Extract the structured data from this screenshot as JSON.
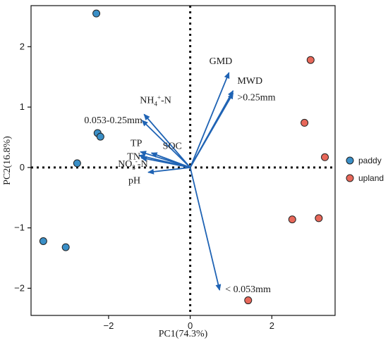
{
  "chart_data": {
    "type": "scatter",
    "subtype": "pca-biplot",
    "xlabel": "PC1(74.3%)",
    "ylabel": "PC2(16.8%)",
    "xlim": [
      -3.9,
      3.55
    ],
    "ylim": [
      -2.45,
      2.68
    ],
    "xticks": [
      -2,
      0,
      2
    ],
    "yticks": [
      -2,
      -1,
      0,
      1,
      2
    ],
    "grid": false,
    "legend_position": "right",
    "series": [
      {
        "name": "paddy",
        "color": "#3a8fc7",
        "points": [
          {
            "x": -2.3,
            "y": 2.55
          },
          {
            "x": -2.27,
            "y": 0.57
          },
          {
            "x": -2.2,
            "y": 0.51
          },
          {
            "x": -2.77,
            "y": 0.07
          },
          {
            "x": -3.6,
            "y": -1.22
          },
          {
            "x": -3.05,
            "y": -1.32
          }
        ]
      },
      {
        "name": "upland",
        "color": "#e8685a",
        "points": [
          {
            "x": 2.95,
            "y": 1.78
          },
          {
            "x": 2.8,
            "y": 0.74
          },
          {
            "x": 3.3,
            "y": 0.17
          },
          {
            "x": 2.5,
            "y": -0.86
          },
          {
            "x": 3.15,
            "y": -0.84
          },
          {
            "x": 1.42,
            "y": -2.2
          }
        ]
      }
    ],
    "vectors": [
      {
        "label": "GMD",
        "x": 0.95,
        "y": 1.57,
        "label_sup": "",
        "label_sub": ""
      },
      {
        "label": "MWD",
        "x": 1.05,
        "y": 1.27,
        "label_sup": "",
        "label_sub": ""
      },
      {
        "label": ">0.25mm",
        "x": 1.05,
        "y": 1.23,
        "label_sup": "",
        "label_sub": ""
      },
      {
        "label": "NH4+-N",
        "label_main": "NH",
        "label_sub": "4",
        "label_sup": "+",
        "label_tail": "-N",
        "x": -1.13,
        "y": 0.88
      },
      {
        "label": "0.053-0.25mm",
        "x": -1.18,
        "y": 0.78,
        "label_sup": "",
        "label_sub": ""
      },
      {
        "label": "SOC",
        "x": -0.95,
        "y": 0.24,
        "label_sup": "",
        "label_sub": ""
      },
      {
        "label": "TP",
        "x": -1.22,
        "y": 0.26,
        "label_sup": "",
        "label_sub": ""
      },
      {
        "label": "TN",
        "x": -1.25,
        "y": 0.2,
        "label_sup": "",
        "label_sub": ""
      },
      {
        "label": "NO3--N",
        "label_main": "NO",
        "label_sub": "3",
        "label_sup": "-",
        "label_tail": "-N",
        "x": -1.2,
        "y": 0.16
      },
      {
        "label": "pH",
        "x": -1.03,
        "y": -0.08,
        "label_sup": "",
        "label_sub": ""
      },
      {
        "label": "< 0.053mm",
        "x": 0.72,
        "y": -2.03,
        "label_sup": "",
        "label_sub": ""
      }
    ],
    "vector_color": "#1f63b4",
    "legend": [
      {
        "name": "paddy",
        "color": "#3a8fc7"
      },
      {
        "name": "upland",
        "color": "#e8685a"
      }
    ]
  }
}
